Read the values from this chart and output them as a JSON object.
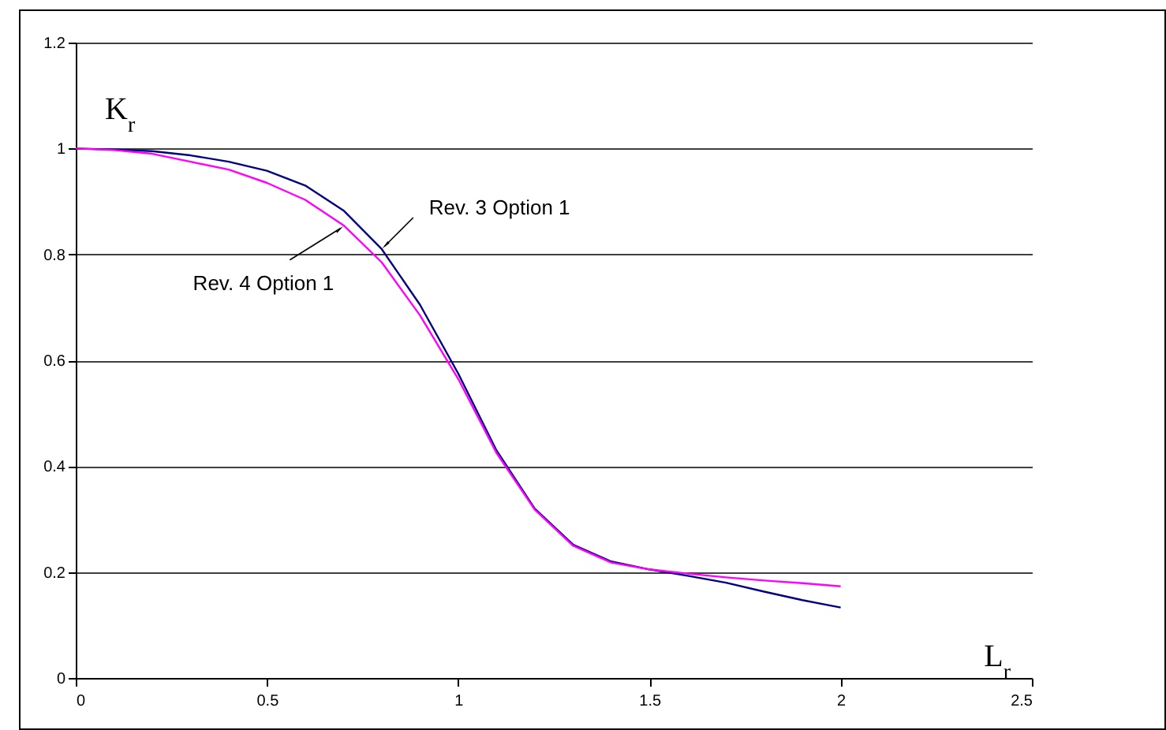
{
  "chart_data": {
    "type": "line",
    "xlabel": "L$_{r}$",
    "ylabel": "K$_{r}$",
    "x": [
      0,
      0.1,
      0.2,
      0.3,
      0.4,
      0.5,
      0.6,
      0.7,
      0.8,
      0.9,
      1.0,
      1.1,
      1.2,
      1.3,
      1.4,
      1.5,
      1.6,
      1.7,
      1.8,
      1.9,
      2.0
    ],
    "series": [
      {
        "name": "Rev. 3 Option 1",
        "color": "#000080",
        "values": [
          1,
          0.998,
          0.995,
          0.987,
          0.975,
          0.958,
          0.93,
          0.883,
          0.81,
          0.705,
          0.575,
          0.43,
          0.32,
          0.252,
          0.22,
          0.205,
          0.193,
          0.18,
          0.163,
          0.147,
          0.133
        ]
      },
      {
        "name": "Rev. 4 Option 1",
        "color": "#ff00ff",
        "values": [
          1,
          0.997,
          0.99,
          0.975,
          0.96,
          0.935,
          0.903,
          0.855,
          0.785,
          0.685,
          0.565,
          0.425,
          0.318,
          0.25,
          0.218,
          0.205,
          0.197,
          0.19,
          0.184,
          0.179,
          0.173
        ]
      }
    ],
    "xlim": [
      0,
      2.5
    ],
    "xticks": [
      0,
      0.5,
      1,
      1.5,
      2,
      2.5
    ],
    "ylim": [
      0,
      1.2
    ],
    "yticks": [
      0,
      0.2,
      0.4,
      0.6,
      0.8,
      1,
      1.2
    ],
    "grid": "y",
    "marker": "none",
    "line_style": "solid"
  }
}
